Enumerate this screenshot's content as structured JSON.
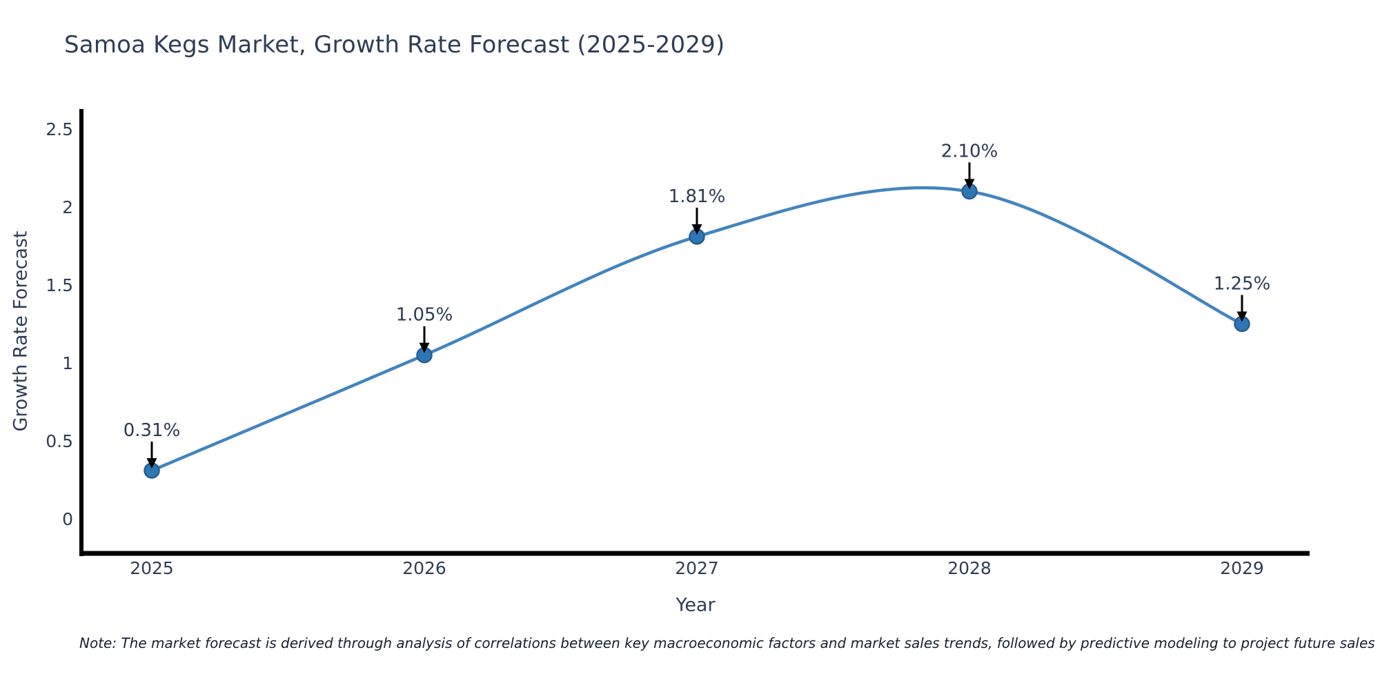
{
  "page": {
    "background": "#ffffff"
  },
  "chart_data": {
    "type": "line",
    "title": "Samoa Kegs Market, Growth Rate Forecast (2025-2029)",
    "xlabel": "Year",
    "ylabel": "Growth Rate Forecast",
    "x": [
      2025,
      2026,
      2027,
      2028,
      2029
    ],
    "series": [
      {
        "name": "Growth Rate Forecast",
        "values": [
          0.31,
          1.05,
          1.81,
          2.1,
          1.25
        ],
        "labels": [
          "0.31%",
          "1.05%",
          "1.81%",
          "2.10%",
          "1.25%"
        ]
      }
    ],
    "yticks": [
      0,
      0.5,
      1,
      1.5,
      2,
      2.5
    ],
    "ytick_labels": [
      "0",
      "0.5",
      "1",
      "1.5",
      "2",
      "2.5"
    ],
    "xtick_labels": [
      "2025",
      "2026",
      "2027",
      "2028",
      "2029"
    ],
    "ylim": [
      -0.2,
      2.62
    ],
    "grid": false,
    "legend_position": "none",
    "line_style": "smooth-spline",
    "marker_style": "circle",
    "annotation_style": "value-label-with-black-arrow-above-point",
    "colors": {
      "line": "#4484be",
      "marker_fill": "#2f76b5",
      "marker_edge": "#275d90",
      "axis_spine": "#000000",
      "text": "#2f3d55",
      "annotation_text": "#2c3a50",
      "arrow": "#000000",
      "note_text": "#16202e",
      "background": "#ffffff"
    },
    "note": "Note: The market forecast is derived through analysis of correlations between key macroeconomic factors and market sales trends, followed by predictive modeling to project future sales"
  }
}
